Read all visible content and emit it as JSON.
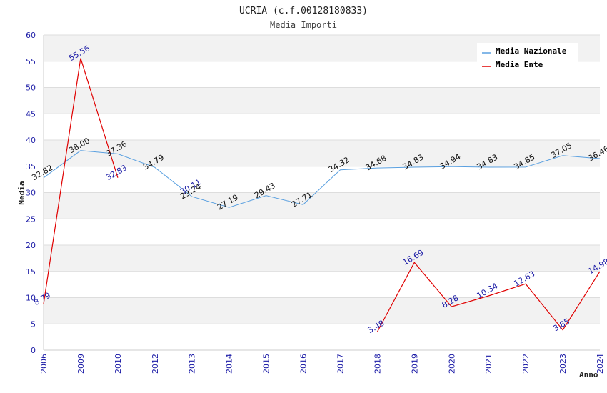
{
  "chart_data": {
    "type": "line",
    "title": "UCRIA (c.f.00128180833)",
    "subtitle": "Media Importi",
    "xlabel": "Anno",
    "ylabel": "Media",
    "ylim": [
      0,
      60
    ],
    "yticks": [
      "0",
      "5",
      "10",
      "15",
      "20",
      "25",
      "30",
      "35",
      "40",
      "45",
      "50",
      "55",
      "60"
    ],
    "categories": [
      "2006",
      "2009",
      "2010",
      "2012",
      "2013",
      "2014",
      "2015",
      "2016",
      "2017",
      "2018",
      "2019",
      "2020",
      "2021",
      "2022",
      "2023",
      "2024"
    ],
    "grid": true,
    "legend_position": "top-right",
    "series": [
      {
        "name": "Media Nazionale",
        "color": "#5aa0e0",
        "values": [
          32.82,
          38.0,
          37.36,
          34.79,
          29.24,
          27.19,
          29.43,
          27.71,
          34.32,
          34.68,
          34.83,
          34.94,
          34.83,
          34.85,
          37.05,
          36.46
        ],
        "labels": [
          "32.82",
          "38.00",
          "37.36",
          "34.79",
          "29.24",
          "27.19",
          "29.43",
          "27.71",
          "34.32",
          "34.68",
          "34.83",
          "34.94",
          "34.83",
          "34.85",
          "37.05",
          "36.46"
        ]
      },
      {
        "name": "Media Ente",
        "color": "#e00000",
        "values": [
          8.79,
          55.56,
          32.83,
          null,
          30.11,
          null,
          null,
          null,
          null,
          3.48,
          16.69,
          8.28,
          10.34,
          12.63,
          3.85,
          14.98
        ],
        "labels": [
          "8.79",
          "55.56",
          "32.83",
          null,
          "30.11",
          null,
          null,
          null,
          null,
          "3.48",
          "16.69",
          "8.28",
          "10.34",
          "12.63",
          "3.85",
          "14.98"
        ]
      }
    ]
  }
}
